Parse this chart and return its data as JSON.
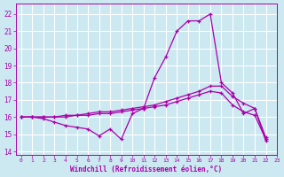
{
  "xlabel": "Windchill (Refroidissement éolien,°C)",
  "bg_color": "#cce8f0",
  "grid_color": "#ffffff",
  "line_color": "#aa00aa",
  "xlim": [
    -0.5,
    23
  ],
  "ylim": [
    13.8,
    22.6
  ],
  "xticks": [
    0,
    1,
    2,
    3,
    4,
    5,
    6,
    7,
    8,
    9,
    10,
    11,
    12,
    13,
    14,
    15,
    16,
    17,
    18,
    19,
    20,
    21,
    22,
    23
  ],
  "yticks": [
    14,
    15,
    16,
    17,
    18,
    19,
    20,
    21,
    22
  ],
  "line1_x": [
    0,
    1,
    2,
    3,
    4,
    5,
    6,
    7,
    8,
    9,
    10,
    11,
    12,
    13,
    14,
    15,
    16,
    17,
    18,
    19,
    20,
    21,
    22
  ],
  "line1_y": [
    16.0,
    16.0,
    15.9,
    15.7,
    15.5,
    15.4,
    15.3,
    14.9,
    15.3,
    14.7,
    16.2,
    16.5,
    18.3,
    19.5,
    21.0,
    21.6,
    21.6,
    22.0,
    18.0,
    17.4,
    16.2,
    16.5,
    14.6
  ],
  "line2_x": [
    0,
    1,
    2,
    3,
    4,
    5,
    6,
    7,
    8,
    9,
    10,
    11,
    12,
    13,
    14,
    15,
    16,
    17,
    18,
    19,
    20,
    21,
    22
  ],
  "line2_y": [
    16.0,
    16.0,
    16.0,
    16.0,
    16.1,
    16.1,
    16.2,
    16.3,
    16.3,
    16.4,
    16.5,
    16.6,
    16.7,
    16.9,
    17.1,
    17.3,
    17.5,
    17.8,
    17.8,
    17.2,
    16.8,
    16.5,
    14.8
  ],
  "line3_x": [
    0,
    1,
    2,
    3,
    4,
    5,
    6,
    7,
    8,
    9,
    10,
    11,
    12,
    13,
    14,
    15,
    16,
    17,
    18,
    19,
    20,
    21,
    22
  ],
  "line3_y": [
    16.0,
    16.0,
    16.0,
    16.0,
    16.0,
    16.1,
    16.1,
    16.2,
    16.2,
    16.3,
    16.4,
    16.5,
    16.6,
    16.7,
    16.9,
    17.1,
    17.3,
    17.5,
    17.4,
    16.7,
    16.3,
    16.1,
    14.7
  ],
  "marker": "+",
  "markersize": 3.5,
  "linewidth": 0.9
}
